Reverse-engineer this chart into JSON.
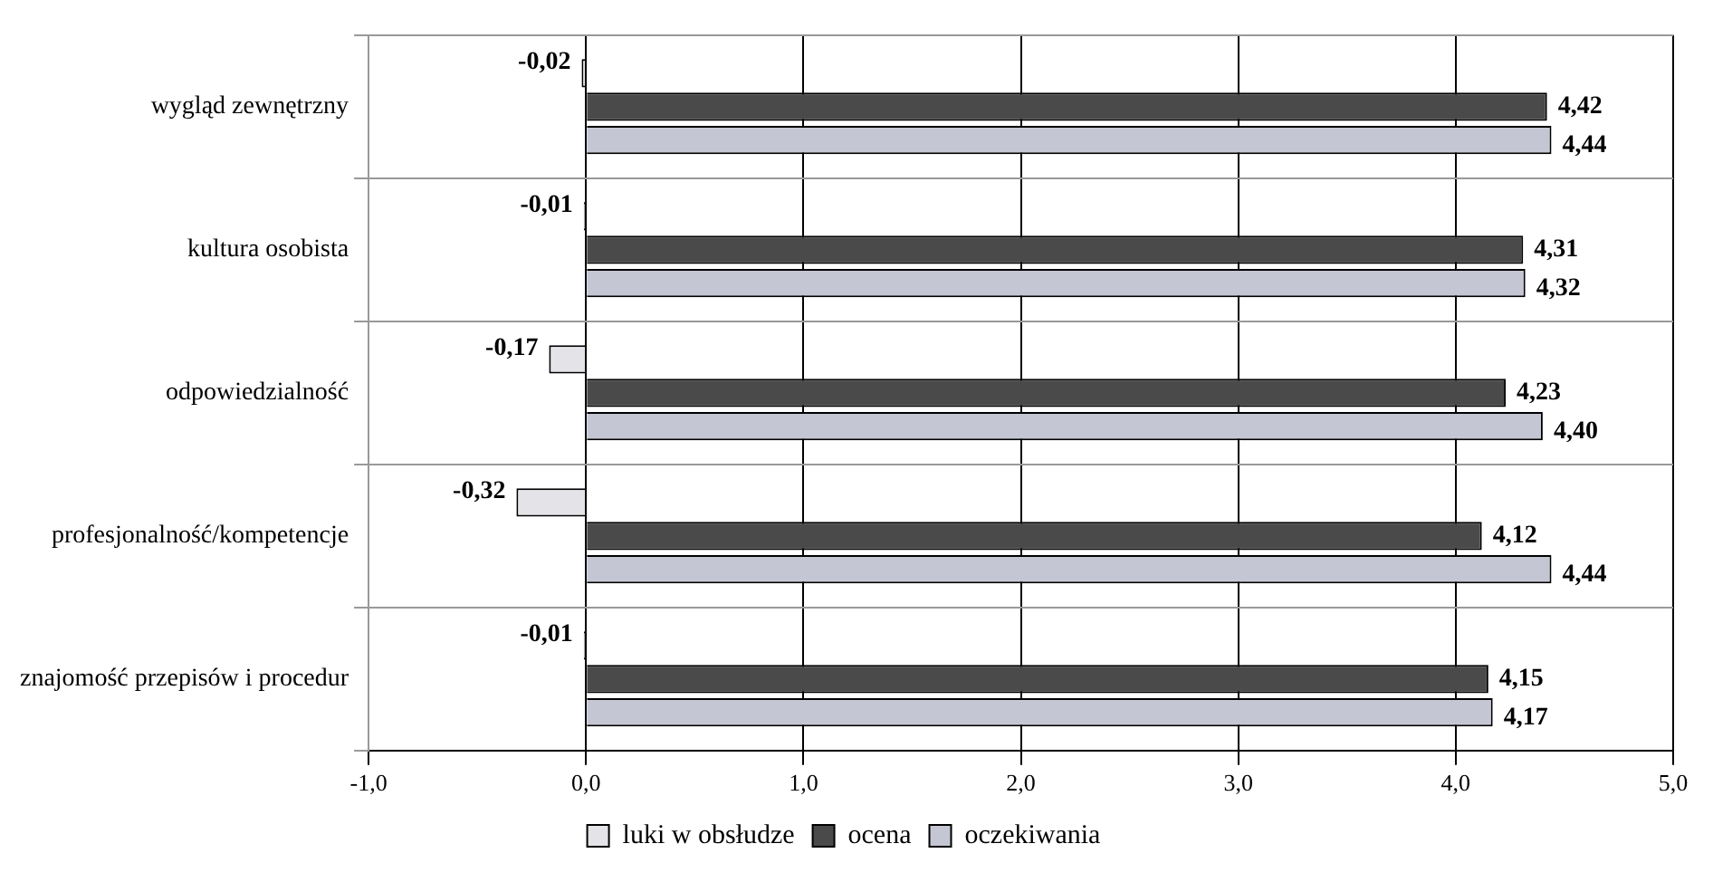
{
  "chart_data": {
    "type": "bar",
    "orientation": "horizontal",
    "categories": [
      "wygląd zewnętrzny",
      "kultura osobista",
      "odpowiedzialność",
      "profesjonalność/kompetencje",
      "znajomość przepisów i procedur"
    ],
    "series": [
      {
        "name": "luki w obsłudze",
        "color": "#e4e4e8",
        "values": [
          -0.02,
          -0.01,
          -0.17,
          -0.32,
          -0.01
        ],
        "value_labels": [
          "-0,02",
          "-0,01",
          "-0,17",
          "-0,32",
          "-0,01"
        ]
      },
      {
        "name": "ocena",
        "color": "#4a4a4a",
        "values": [
          4.42,
          4.31,
          4.23,
          4.12,
          4.15
        ],
        "value_labels": [
          "4,42",
          "4,31",
          "4,23",
          "4,12",
          "4,15"
        ]
      },
      {
        "name": "oczekiwania",
        "color": "#c4c6d4",
        "values": [
          4.44,
          4.32,
          4.4,
          4.44,
          4.17
        ],
        "value_labels": [
          "4,44",
          "4,32",
          "4,40",
          "4,44",
          "4,17"
        ]
      }
    ],
    "xlim": [
      -1,
      5
    ],
    "xticks": [
      {
        "value": -1,
        "label": "-1,0"
      },
      {
        "value": 0,
        "label": "0,0"
      },
      {
        "value": 1,
        "label": "1,0"
      },
      {
        "value": 2,
        "label": "2,0"
      },
      {
        "value": 3,
        "label": "3,0"
      },
      {
        "value": 4,
        "label": "4,0"
      },
      {
        "value": 5,
        "label": "5,0"
      }
    ],
    "grid": true,
    "legend": "bottom"
  }
}
